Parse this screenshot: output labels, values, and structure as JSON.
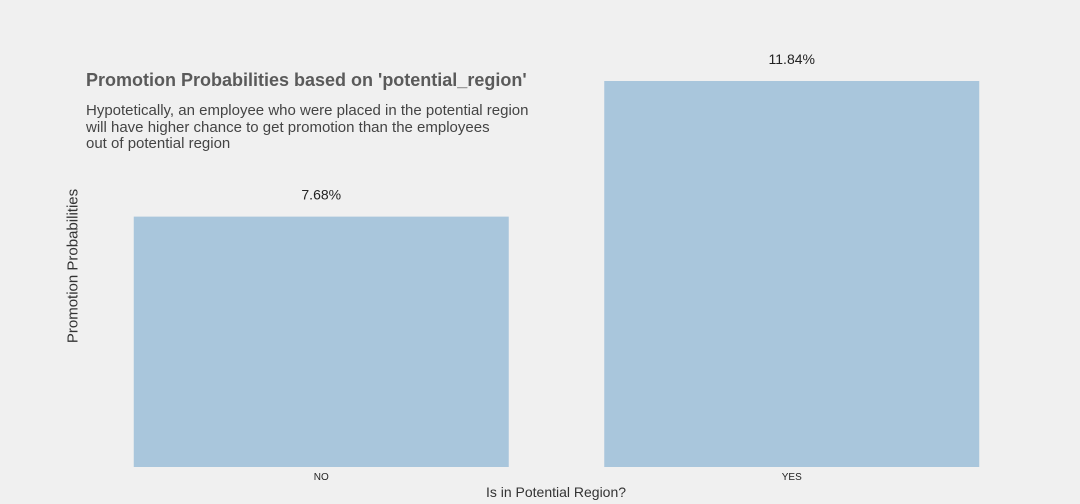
{
  "chart_data": {
    "type": "bar",
    "title": "Promotion Probabilities based on 'potential_region'",
    "subtitle_lines": [
      "Hypotetically, an employee who were placed in the potential region",
      "will have higher chance to get promotion than the employees",
      "out of potential region"
    ],
    "xlabel": "Is in Potential Region?",
    "ylabel": "Promotion Probabilities",
    "categories": [
      "NO",
      "YES"
    ],
    "values": [
      7.68,
      11.84
    ],
    "data_labels": [
      "7.68%",
      "11.84%"
    ],
    "ylim": [
      0,
      11.84
    ],
    "grid": false,
    "bar_color": "#a9c6dc",
    "background_color": "#f0f0f0"
  }
}
